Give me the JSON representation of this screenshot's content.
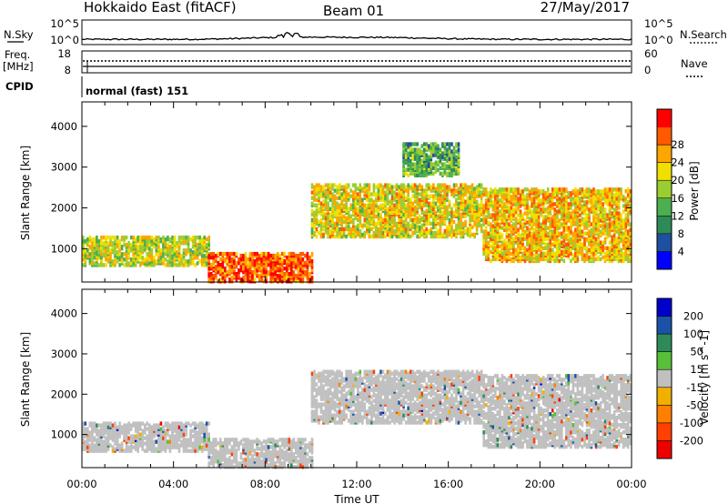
{
  "header": {
    "station": "Hokkaido East (fitACF)",
    "beam": "Beam 01",
    "date": "27/May/2017"
  },
  "top_panel": {
    "left_label": "N.Sky",
    "right_label": "N.Search",
    "left_ticks": [
      "10^5",
      "10^0"
    ],
    "right_ticks": [
      "10^5",
      "10^0"
    ]
  },
  "freq_panel": {
    "left_label": "Freq.",
    "left_unit": "[MHz]",
    "left_ticks": [
      "18",
      "8"
    ],
    "right_label": "Nave",
    "right_ticks": [
      "60",
      "0"
    ]
  },
  "cpid_label": "CPID",
  "cpid_text": "normal (fast) 151",
  "colors": {
    "power_scale": [
      "#0000ff",
      "#1e4fa0",
      "#2e8b57",
      "#4caf50",
      "#9acd32",
      "#f0e000",
      "#ffa500",
      "#ff5a00",
      "#ff0000"
    ],
    "velocity_scale": [
      "#0000cc",
      "#1a52a8",
      "#2e8b57",
      "#58c038",
      "#c0c0c0",
      "#f0b000",
      "#ff8000",
      "#ff4000",
      "#ee0000"
    ]
  },
  "chart_data": [
    {
      "type": "heatmap",
      "quantity": "Power",
      "ylabel": "Slant Range [km]",
      "xlabel": "",
      "x_ticks": [
        "00:00",
        "04:00",
        "08:00",
        "12:00",
        "16:00",
        "20:00",
        "00:00"
      ],
      "y_ticks": [
        1000,
        2000,
        3000,
        4000
      ],
      "ylim": [
        180,
        4600
      ],
      "colorbar": {
        "label": "Power [dB]",
        "ticks": [
          4,
          8,
          12,
          16,
          20,
          24,
          28
        ]
      },
      "echo_regions": [
        {
          "t_start": "00:00",
          "t_end": "05:30",
          "range_km": [
            600,
            1300
          ],
          "power_db": 20
        },
        {
          "t_start": "05:30",
          "t_end": "10:00",
          "range_km": [
            200,
            900
          ],
          "power_db": 30
        },
        {
          "t_start": "10:00",
          "t_end": "17:30",
          "range_km": [
            1300,
            2600
          ],
          "power_db": 22
        },
        {
          "t_start": "17:30",
          "t_end": "23:59",
          "range_km": [
            700,
            2500
          ],
          "power_db": 24
        },
        {
          "t_start": "14:00",
          "t_end": "16:30",
          "range_km": [
            2800,
            3600
          ],
          "power_db": 14
        }
      ]
    },
    {
      "type": "heatmap",
      "quantity": "Velocity",
      "ylabel": "Slant Range [km]",
      "xlabel": "Time UT",
      "x_ticks": [
        "00:00",
        "04:00",
        "08:00",
        "12:00",
        "16:00",
        "20:00",
        "00:00"
      ],
      "y_ticks": [
        1000,
        2000,
        3000,
        4000
      ],
      "ylim": [
        180,
        4600
      ],
      "colorbar": {
        "label": "Velocity [m s^-1]",
        "ticks": [
          200,
          100,
          50,
          15,
          -15,
          -50,
          -100,
          -200
        ]
      },
      "echo_regions": [
        {
          "t_start": "00:00",
          "t_end": "05:30",
          "range_km": [
            600,
            1300
          ],
          "velocity": 0
        },
        {
          "t_start": "05:30",
          "t_end": "10:00",
          "range_km": [
            200,
            900
          ],
          "velocity": 0
        },
        {
          "t_start": "10:00",
          "t_end": "17:30",
          "range_km": [
            1300,
            2600
          ],
          "velocity": 0
        },
        {
          "t_start": "17:30",
          "t_end": "23:59",
          "range_km": [
            700,
            2500
          ],
          "velocity": 0
        }
      ]
    }
  ]
}
